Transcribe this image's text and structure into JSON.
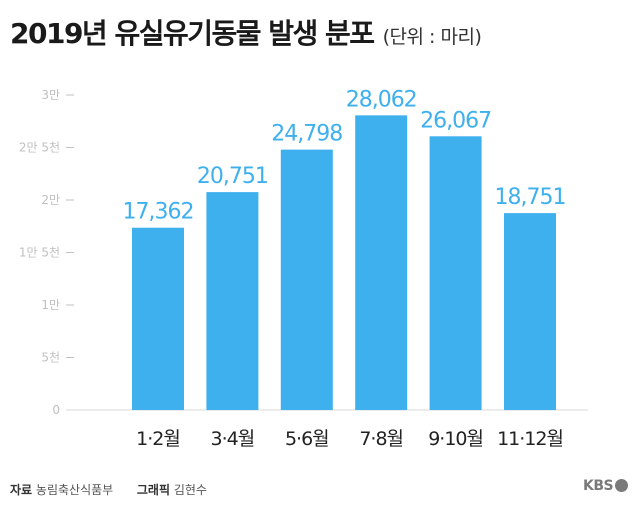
{
  "header": {
    "title": "2019년 유실유기동물 발생 분포",
    "unit": "(단위 : 마리)"
  },
  "footer": {
    "source_label": "자료",
    "source_value": "농림축산식품부",
    "graphic_label": "그래픽",
    "graphic_value": "김현수",
    "logo": "KBS"
  },
  "colors": {
    "bar": "#3fb0ee",
    "value_label": "#3fb0ee",
    "axis_tick": "#c0c0c0",
    "category_label": "#222222"
  },
  "chart_data": {
    "type": "bar",
    "categories": [
      "1·2월",
      "3·4월",
      "5·6월",
      "7·8월",
      "9·10월",
      "11·12월"
    ],
    "values": [
      17362,
      20751,
      24798,
      28062,
      26067,
      18751
    ],
    "value_labels": [
      "17,362",
      "20,751",
      "24,798",
      "28,062",
      "26,067",
      "18,751"
    ],
    "y_ticks": [
      {
        "value": 0,
        "label": "0"
      },
      {
        "value": 5000,
        "label": "5천"
      },
      {
        "value": 10000,
        "label": "1만"
      },
      {
        "value": 15000,
        "label": "1만 5천"
      },
      {
        "value": 20000,
        "label": "2만"
      },
      {
        "value": 25000,
        "label": "2만 5천"
      },
      {
        "value": 30000,
        "label": "3만"
      }
    ],
    "ylim": [
      0,
      30000
    ],
    "grid": false,
    "legend": "none"
  }
}
